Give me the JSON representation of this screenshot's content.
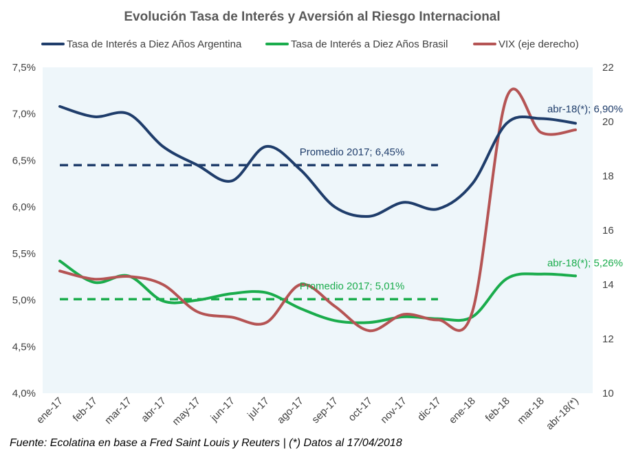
{
  "chart_data": {
    "type": "line",
    "title": "Evolución Tasa de Interés y Aversión al Riesgo Internacional",
    "source": "Fuente: Ecolatina en base a Fred Saint Louis y Reuters | (*) Datos al 17/04/2018",
    "categories": [
      "ene-17",
      "feb-17",
      "mar-17",
      "abr-17",
      "may-17",
      "jun-17",
      "jul-17",
      "ago-17",
      "sep-17",
      "oct-17",
      "nov-17",
      "dic-17",
      "ene-18",
      "feb-18",
      "mar-18",
      "abr-18(*)"
    ],
    "y_left": {
      "min": 4.0,
      "max": 7.5,
      "step": 0.5,
      "ticks": [
        "4,0%",
        "4,5%",
        "5,0%",
        "5,5%",
        "6,0%",
        "6,5%",
        "7,0%",
        "7,5%"
      ]
    },
    "y_right": {
      "min": 10,
      "max": 22,
      "step": 2,
      "ticks": [
        "10",
        "12",
        "14",
        "16",
        "18",
        "20",
        "22"
      ]
    },
    "legend_position": "top",
    "plot_background": "#eef6fa",
    "series": [
      {
        "name": "Tasa de Interés a Diez Años Argentina",
        "axis": "left",
        "color": "#1f3d6b",
        "values": [
          7.08,
          6.97,
          7.0,
          6.65,
          6.45,
          6.28,
          6.65,
          6.4,
          6.0,
          5.9,
          6.05,
          5.98,
          6.25,
          6.9,
          6.95,
          6.9
        ]
      },
      {
        "name": "Tasa de Interés a Diez Años Brasil",
        "axis": "left",
        "color": "#1aac4c",
        "values": [
          5.42,
          5.19,
          5.26,
          4.99,
          5.0,
          5.07,
          5.08,
          4.91,
          4.78,
          4.76,
          4.82,
          4.8,
          4.82,
          5.23,
          5.28,
          5.26
        ]
      },
      {
        "name": "VIX (eje derecho)",
        "axis": "right",
        "color": "#b55454",
        "values": [
          14.5,
          14.2,
          14.3,
          14.0,
          13.0,
          12.8,
          12.6,
          14.0,
          13.2,
          12.3,
          12.9,
          12.7,
          13.0,
          20.9,
          19.6,
          19.7
        ]
      }
    ],
    "reference_lines": [
      {
        "label": "Promedio 2017; 6,45%",
        "value": 6.45,
        "axis": "left",
        "color": "#1f3d6b",
        "from": "ene-17",
        "to": "dic-17"
      },
      {
        "label": "Promedio 2017; 5,01%",
        "value": 5.01,
        "axis": "left",
        "color": "#1aac4c",
        "from": "ene-17",
        "to": "dic-17"
      }
    ],
    "annotations": [
      {
        "text": "abr-18(*); 6,90%",
        "color": "#1f3d6b"
      },
      {
        "text": "abr-18(*); 5,26%",
        "color": "#1aac4c"
      }
    ]
  }
}
